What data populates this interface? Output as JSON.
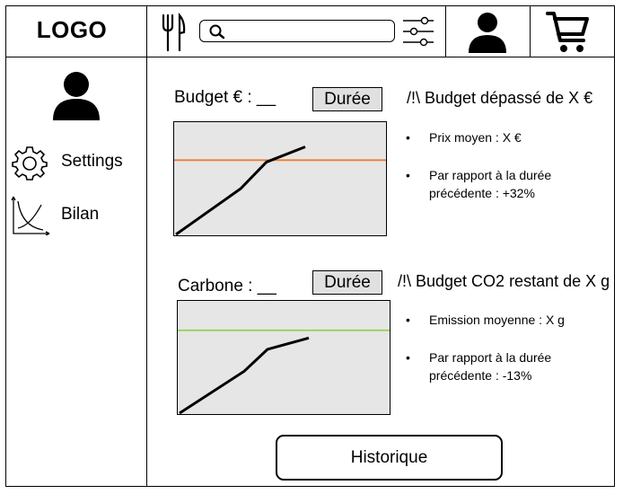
{
  "header": {
    "logo_text": "LOGO",
    "icons": [
      "restaurant-icon",
      "search-icon",
      "filter-sliders-icon",
      "user-icon",
      "cart-icon"
    ]
  },
  "sidebar": {
    "items": [
      {
        "label": "Settings",
        "icon": "gear-icon"
      },
      {
        "label": "Bilan",
        "icon": "chart-icon"
      }
    ]
  },
  "budget": {
    "label": "Budget € : __",
    "duration_button": "Durée",
    "warning": "/!\\ Budget dépassé de X €",
    "bullets": [
      "Prix moyen : X €",
      "Par rapport à la durée précédente :  +32%"
    ],
    "threshold_color": "#ed7d31",
    "chart_data": {
      "type": "line",
      "series": [
        {
          "values": [
            [
              0,
              0
            ],
            [
              0.5,
              0.48
            ],
            [
              0.7,
              0.76
            ],
            [
              1,
              0.92
            ]
          ]
        }
      ],
      "threshold": 0.78
    }
  },
  "carbone": {
    "label": "Carbone : __",
    "duration_button": "Durée",
    "warning": "/!\\ Budget CO2 restant de X g",
    "bullets": [
      "Emission moyenne : X g",
      "Par rapport à la durée précédente :  -13%"
    ],
    "threshold_color": "#92d050",
    "chart_data": {
      "type": "line",
      "series": [
        {
          "values": [
            [
              0,
              0
            ],
            [
              0.5,
              0.44
            ],
            [
              0.68,
              0.67
            ],
            [
              1,
              0.79
            ]
          ]
        }
      ],
      "threshold": 0.87
    }
  },
  "footer": {
    "history_button": "Historique"
  }
}
